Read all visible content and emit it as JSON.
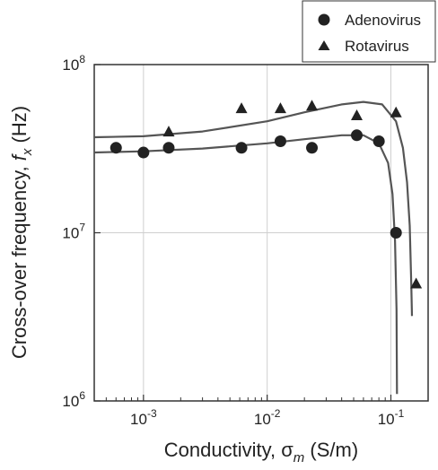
{
  "chart_data": {
    "type": "scatter",
    "x_scale": "log",
    "y_scale": "log",
    "xlim": [
      0.0004,
      0.2
    ],
    "ylim": [
      1000000,
      100000000
    ],
    "grid": true,
    "legend_placement": "top-right",
    "xlabel": {
      "prefix": "Conductivity, ",
      "symbol": "σ",
      "subscript": "m",
      "suffix": " (S/m)"
    },
    "ylabel": {
      "prefix": "Cross-over frequency, ",
      "symbol": "f",
      "subscript": "x",
      "suffix": " (Hz)"
    },
    "x_ticks": [
      {
        "value": 0.001,
        "base": "10",
        "exp": "-3"
      },
      {
        "value": 0.01,
        "base": "10",
        "exp": "-2"
      },
      {
        "value": 0.1,
        "base": "10",
        "exp": "-1"
      }
    ],
    "y_ticks": [
      {
        "value": 1000000,
        "base": "10",
        "exp": "6"
      },
      {
        "value": 10000000,
        "base": "10",
        "exp": "7"
      },
      {
        "value": 100000000,
        "base": "10",
        "exp": "8"
      }
    ],
    "series": [
      {
        "name": "Adenovirus",
        "marker": "circle",
        "color": "#222222",
        "points": [
          {
            "x": 0.0006,
            "y": 32000000
          },
          {
            "x": 0.001,
            "y": 30000000
          },
          {
            "x": 0.0016,
            "y": 32000000
          },
          {
            "x": 0.0062,
            "y": 32000000
          },
          {
            "x": 0.0128,
            "y": 35000000
          },
          {
            "x": 0.023,
            "y": 32000000
          },
          {
            "x": 0.053,
            "y": 38000000
          },
          {
            "x": 0.08,
            "y": 35000000
          },
          {
            "x": 0.11,
            "y": 10000000
          }
        ],
        "fit": [
          {
            "x": 0.0004,
            "y": 30000000
          },
          {
            "x": 0.001,
            "y": 30500000
          },
          {
            "x": 0.003,
            "y": 31700000
          },
          {
            "x": 0.01,
            "y": 34000000
          },
          {
            "x": 0.02,
            "y": 36000000
          },
          {
            "x": 0.04,
            "y": 38000000
          },
          {
            "x": 0.06,
            "y": 38000000
          },
          {
            "x": 0.08,
            "y": 34000000
          },
          {
            "x": 0.095,
            "y": 26000000
          },
          {
            "x": 0.103,
            "y": 17000000
          },
          {
            "x": 0.108,
            "y": 9000000
          },
          {
            "x": 0.111,
            "y": 3500000
          },
          {
            "x": 0.112,
            "y": 1100000
          }
        ]
      },
      {
        "name": "Rotavirus",
        "marker": "triangle",
        "color": "#222222",
        "points": [
          {
            "x": 0.0016,
            "y": 40000000
          },
          {
            "x": 0.0062,
            "y": 55000000
          },
          {
            "x": 0.0128,
            "y": 55000000
          },
          {
            "x": 0.023,
            "y": 57000000
          },
          {
            "x": 0.053,
            "y": 50000000
          },
          {
            "x": 0.11,
            "y": 52000000
          },
          {
            "x": 0.16,
            "y": 5000000
          }
        ],
        "fit": [
          {
            "x": 0.0004,
            "y": 37000000
          },
          {
            "x": 0.001,
            "y": 37500000
          },
          {
            "x": 0.003,
            "y": 40000000
          },
          {
            "x": 0.01,
            "y": 46000000
          },
          {
            "x": 0.02,
            "y": 52000000
          },
          {
            "x": 0.04,
            "y": 58000000
          },
          {
            "x": 0.06,
            "y": 60000000
          },
          {
            "x": 0.085,
            "y": 58000000
          },
          {
            "x": 0.11,
            "y": 46000000
          },
          {
            "x": 0.125,
            "y": 32000000
          },
          {
            "x": 0.135,
            "y": 20000000
          },
          {
            "x": 0.142,
            "y": 11000000
          },
          {
            "x": 0.146,
            "y": 5000000
          },
          {
            "x": 0.148,
            "y": 3200000
          }
        ]
      }
    ]
  }
}
